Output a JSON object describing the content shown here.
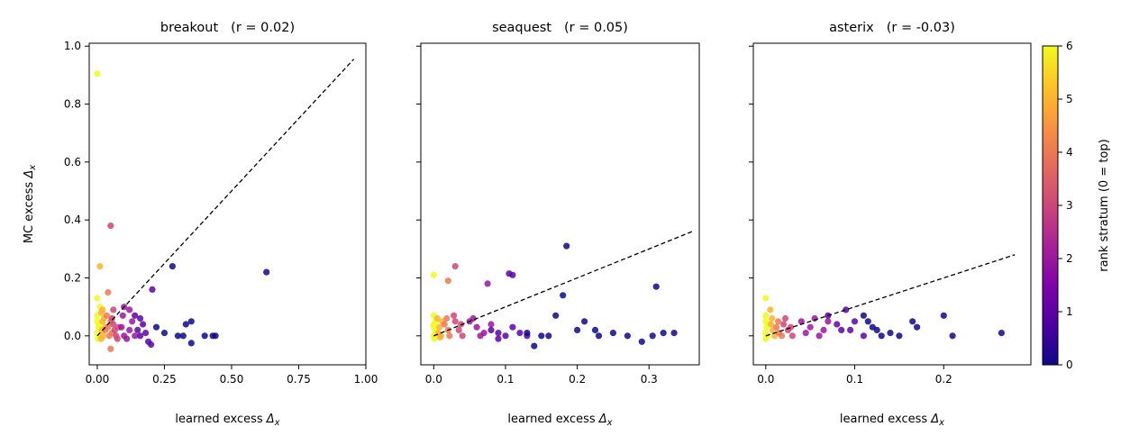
{
  "chart_data": {
    "type": "scatter",
    "colorbar": {
      "label": "rank stratum (0 = top)",
      "range": [
        0,
        6
      ],
      "ticks": [
        "0",
        "1",
        "2",
        "3",
        "4",
        "5",
        "6"
      ],
      "colormap": "plasma"
    },
    "panels": [
      {
        "title_name": "breakout",
        "title_r": "(r = 0.02)",
        "xlabel": "learned excess",
        "ylabel": "MC excess",
        "xlim": [
          -0.03,
          1.0
        ],
        "ylim": [
          -0.1,
          1.01
        ],
        "xticks": [
          "0.00",
          "0.25",
          "0.50",
          "0.75",
          "1.00"
        ],
        "xtick_values": [
          0,
          0.25,
          0.5,
          0.75,
          1.0
        ],
        "yticks": [
          "0.0",
          "0.2",
          "0.4",
          "0.6",
          "0.8",
          "1.0"
        ],
        "ytick_values": [
          0,
          0.2,
          0.4,
          0.6,
          0.8,
          1.0
        ],
        "diagonal": [
          [
            0,
            0
          ],
          [
            0.955,
            0.955
          ]
        ],
        "points": [
          [
            0.0,
            0.905,
            6
          ],
          [
            0.0,
            0.13,
            6
          ],
          [
            0.01,
            0.1,
            6
          ],
          [
            0.0,
            0.07,
            6
          ],
          [
            0.0,
            0.05,
            6
          ],
          [
            0.005,
            0.03,
            6
          ],
          [
            0.0,
            0.01,
            6
          ],
          [
            0.003,
            -0.01,
            6
          ],
          [
            0.008,
            0.04,
            6
          ],
          [
            0.01,
            0.0,
            6
          ],
          [
            0.01,
            0.24,
            5
          ],
          [
            0.015,
            0.08,
            5
          ],
          [
            0.02,
            0.05,
            5
          ],
          [
            0.018,
            0.02,
            5
          ],
          [
            0.022,
            0.0,
            5
          ],
          [
            0.025,
            0.06,
            5
          ],
          [
            0.015,
            -0.01,
            5
          ],
          [
            0.03,
            0.03,
            5
          ],
          [
            0.02,
            0.09,
            5
          ],
          [
            0.04,
            0.15,
            4
          ],
          [
            0.035,
            0.07,
            4
          ],
          [
            0.04,
            0.03,
            4
          ],
          [
            0.045,
            0.0,
            4
          ],
          [
            0.05,
            -0.045,
            4
          ],
          [
            0.05,
            0.05,
            4
          ],
          [
            0.03,
            0.02,
            4
          ],
          [
            0.055,
            0.01,
            4
          ],
          [
            0.05,
            0.38,
            3
          ],
          [
            0.06,
            0.04,
            3
          ],
          [
            0.065,
            0.02,
            3
          ],
          [
            0.07,
            0.0,
            3
          ],
          [
            0.06,
            0.09,
            3
          ],
          [
            0.075,
            -0.01,
            3
          ],
          [
            0.08,
            0.03,
            3
          ],
          [
            0.055,
            0.06,
            3
          ],
          [
            0.1,
            0.1,
            2
          ],
          [
            0.09,
            0.03,
            2
          ],
          [
            0.1,
            0.0,
            2
          ],
          [
            0.12,
            0.02,
            2
          ],
          [
            0.13,
            0.05,
            2
          ],
          [
            0.11,
            -0.01,
            2
          ],
          [
            0.14,
            0.0,
            2
          ],
          [
            0.095,
            0.07,
            2
          ],
          [
            0.12,
            0.09,
            2
          ],
          [
            0.14,
            0.07,
            1
          ],
          [
            0.15,
            0.02,
            1
          ],
          [
            0.16,
            0.0,
            1
          ],
          [
            0.17,
            0.04,
            1
          ],
          [
            0.18,
            0.01,
            1
          ],
          [
            0.19,
            -0.02,
            1
          ],
          [
            0.2,
            -0.03,
            1
          ],
          [
            0.205,
            0.16,
            1
          ],
          [
            0.16,
            0.06,
            1
          ],
          [
            0.28,
            0.24,
            0
          ],
          [
            0.63,
            0.22,
            0
          ],
          [
            0.33,
            0.04,
            0
          ],
          [
            0.35,
            0.05,
            0
          ],
          [
            0.3,
            0.0,
            0
          ],
          [
            0.4,
            0.0,
            0
          ],
          [
            0.43,
            0.0,
            0
          ],
          [
            0.44,
            0.0,
            0
          ],
          [
            0.35,
            -0.025,
            0
          ],
          [
            0.25,
            0.01,
            0
          ],
          [
            0.22,
            0.03,
            0
          ],
          [
            0.32,
            0.0,
            0
          ]
        ]
      },
      {
        "title_name": "seaquest",
        "title_r": "(r = 0.05)",
        "xlabel": "learned excess",
        "ylabel": "",
        "xlim": [
          -0.018,
          0.37
        ],
        "ylim": [
          -0.1,
          1.01
        ],
        "xticks": [
          "0.0",
          "0.1",
          "0.2",
          "0.3"
        ],
        "xtick_values": [
          0,
          0.1,
          0.2,
          0.3
        ],
        "yticks": [],
        "ytick_values": [
          0,
          0.2,
          0.4,
          0.6,
          0.8,
          1.0
        ],
        "diagonal": [
          [
            0,
            0
          ],
          [
            0.36,
            0.36
          ]
        ],
        "points": [
          [
            0.0,
            0.21,
            6
          ],
          [
            0.0,
            0.07,
            6
          ],
          [
            0.0,
            0.04,
            6
          ],
          [
            0.002,
            0.02,
            6
          ],
          [
            0.0,
            0.0,
            6
          ],
          [
            0.001,
            -0.01,
            6
          ],
          [
            0.003,
            0.05,
            6
          ],
          [
            0.0,
            0.03,
            6
          ],
          [
            0.005,
            0.06,
            5
          ],
          [
            0.008,
            0.03,
            5
          ],
          [
            0.01,
            0.0,
            5
          ],
          [
            0.006,
            0.01,
            5
          ],
          [
            0.012,
            0.05,
            5
          ],
          [
            0.009,
            -0.005,
            5
          ],
          [
            0.02,
            0.19,
            4
          ],
          [
            0.015,
            0.04,
            4
          ],
          [
            0.02,
            0.02,
            4
          ],
          [
            0.022,
            0.0,
            4
          ],
          [
            0.018,
            0.06,
            4
          ],
          [
            0.03,
            0.24,
            3
          ],
          [
            0.03,
            0.05,
            3
          ],
          [
            0.035,
            0.02,
            3
          ],
          [
            0.04,
            0.0,
            3
          ],
          [
            0.028,
            0.07,
            3
          ],
          [
            0.038,
            0.04,
            3
          ],
          [
            0.05,
            0.05,
            2
          ],
          [
            0.06,
            0.03,
            2
          ],
          [
            0.07,
            0.01,
            2
          ],
          [
            0.075,
            0.18,
            2
          ],
          [
            0.065,
            0.0,
            2
          ],
          [
            0.08,
            0.04,
            2
          ],
          [
            0.055,
            0.06,
            2
          ],
          [
            0.08,
            0.02,
            1
          ],
          [
            0.09,
            0.01,
            1
          ],
          [
            0.1,
            0.0,
            1
          ],
          [
            0.105,
            0.215,
            1
          ],
          [
            0.11,
            0.21,
            1
          ],
          [
            0.12,
            0.01,
            1
          ],
          [
            0.13,
            0.0,
            1
          ],
          [
            0.11,
            0.03,
            1
          ],
          [
            0.09,
            -0.01,
            1
          ],
          [
            0.185,
            0.31,
            0
          ],
          [
            0.18,
            0.14,
            0
          ],
          [
            0.17,
            0.07,
            0
          ],
          [
            0.15,
            0.0,
            0
          ],
          [
            0.2,
            0.02,
            0
          ],
          [
            0.23,
            0.0,
            0
          ],
          [
            0.25,
            0.01,
            0
          ],
          [
            0.27,
            0.0,
            0
          ],
          [
            0.29,
            -0.02,
            0
          ],
          [
            0.305,
            0.0,
            0
          ],
          [
            0.31,
            0.17,
            0
          ],
          [
            0.32,
            0.01,
            0
          ],
          [
            0.335,
            0.01,
            0
          ],
          [
            0.14,
            -0.035,
            0
          ],
          [
            0.16,
            0.0,
            0
          ],
          [
            0.21,
            0.05,
            0
          ],
          [
            0.225,
            0.02,
            0
          ],
          [
            0.13,
            0.01,
            0
          ]
        ]
      },
      {
        "title_name": "asterix",
        "title_r": "(r = -0.03)",
        "xlabel": "learned excess",
        "ylabel": "",
        "xlim": [
          -0.014,
          0.298
        ],
        "ylim": [
          -0.1,
          1.01
        ],
        "xticks": [
          "0.0",
          "0.1",
          "0.2"
        ],
        "xtick_values": [
          0,
          0.1,
          0.2
        ],
        "yticks": [],
        "ytick_values": [
          0,
          0.2,
          0.4,
          0.6,
          0.8,
          1.0
        ],
        "diagonal": [
          [
            0,
            0
          ],
          [
            0.28,
            0.28
          ]
        ],
        "points": [
          [
            0.0,
            0.13,
            6
          ],
          [
            0.0,
            0.07,
            6
          ],
          [
            0.0,
            0.05,
            6
          ],
          [
            0.001,
            0.03,
            6
          ],
          [
            0.0,
            0.01,
            6
          ],
          [
            0.002,
            0.0,
            6
          ],
          [
            0.0,
            -0.01,
            6
          ],
          [
            0.003,
            0.04,
            6
          ],
          [
            0.005,
            0.09,
            5
          ],
          [
            0.006,
            0.04,
            5
          ],
          [
            0.008,
            0.02,
            5
          ],
          [
            0.01,
            0.0,
            5
          ],
          [
            0.007,
            0.06,
            5
          ],
          [
            0.012,
            0.03,
            4
          ],
          [
            0.015,
            0.01,
            4
          ],
          [
            0.018,
            0.0,
            4
          ],
          [
            0.014,
            0.05,
            4
          ],
          [
            0.02,
            0.04,
            3
          ],
          [
            0.025,
            0.02,
            3
          ],
          [
            0.03,
            0.0,
            3
          ],
          [
            0.022,
            0.06,
            3
          ],
          [
            0.028,
            0.03,
            3
          ],
          [
            0.04,
            0.05,
            2
          ],
          [
            0.05,
            0.03,
            2
          ],
          [
            0.06,
            0.0,
            2
          ],
          [
            0.055,
            0.06,
            2
          ],
          [
            0.045,
            0.01,
            2
          ],
          [
            0.07,
            0.05,
            2
          ],
          [
            0.065,
            0.02,
            2
          ],
          [
            0.07,
            0.07,
            1
          ],
          [
            0.08,
            0.04,
            1
          ],
          [
            0.085,
            0.02,
            1
          ],
          [
            0.09,
            0.09,
            1
          ],
          [
            0.1,
            0.05,
            1
          ],
          [
            0.11,
            0.0,
            1
          ],
          [
            0.095,
            0.02,
            1
          ],
          [
            0.11,
            0.07,
            0
          ],
          [
            0.12,
            0.03,
            0
          ],
          [
            0.13,
            0.0,
            0
          ],
          [
            0.14,
            0.01,
            0
          ],
          [
            0.15,
            0.0,
            0
          ],
          [
            0.165,
            0.05,
            0
          ],
          [
            0.17,
            0.03,
            0
          ],
          [
            0.2,
            0.07,
            0
          ],
          [
            0.21,
            0.0,
            0
          ],
          [
            0.265,
            0.01,
            0
          ],
          [
            0.115,
            0.05,
            0
          ],
          [
            0.125,
            0.02,
            0
          ]
        ]
      }
    ]
  }
}
